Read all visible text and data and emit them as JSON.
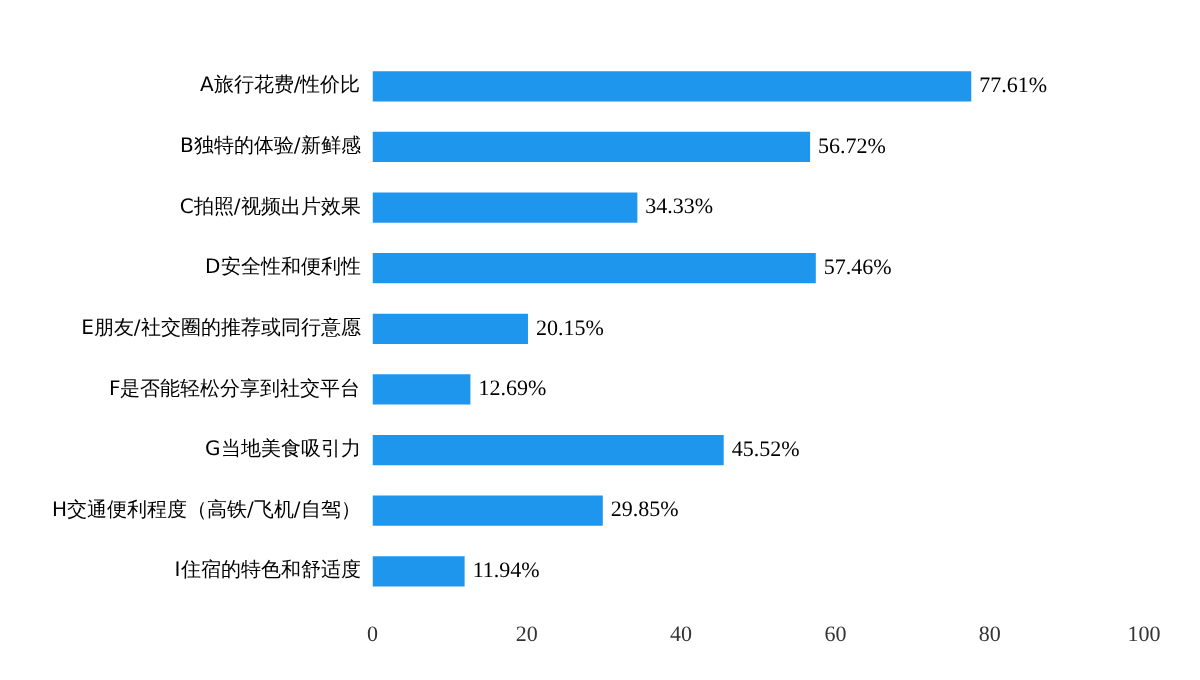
{
  "chart_data": {
    "type": "bar",
    "orientation": "horizontal",
    "categories": [
      "A旅行花费/性价比",
      "B独特的体验/新鲜感",
      "C拍照/视频出片效果",
      "D安全性和便利性",
      "E朋友/社交圈的推荐或同行意愿",
      "F是否能轻松分享到社交平台",
      "G当地美食吸引力",
      "H交通便利程度（高铁/飞机/自驾）",
      "I住宿的特色和舒适度"
    ],
    "values": [
      77.61,
      56.72,
      34.33,
      57.46,
      20.15,
      12.69,
      45.52,
      29.85,
      11.94
    ],
    "value_labels": [
      "77.61%",
      "56.72%",
      "34.33%",
      "57.46%",
      "20.15%",
      "12.69%",
      "45.52%",
      "29.85%",
      "11.94%"
    ],
    "color": "#1e96ee",
    "xlim": [
      0,
      100
    ],
    "xticks": [
      0,
      20,
      40,
      60,
      80,
      100
    ],
    "grid": false,
    "legend": false
  }
}
